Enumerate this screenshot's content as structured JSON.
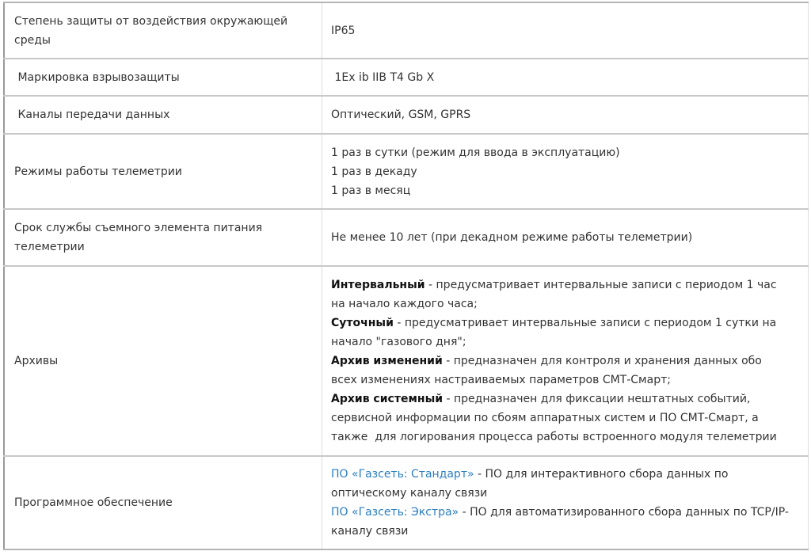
{
  "rows": [
    {
      "label": "Степень защиты от воздействия окружающей\nсреды",
      "value": "IP65"
    },
    {
      "label": " Маркировка взрывозащиты",
      "value": " 1Ex ib IIB T4 Gb X"
    },
    {
      "label": " Каналы передачи данных",
      "value": "Оптический, GSM, GPRS"
    },
    {
      "label": "Режимы работы телеметрии",
      "value_lines": [
        "1 раз в сутки (режим для ввода в эксплуатацию)",
        "1 раз в декаду",
        "1 раз в месяц"
      ]
    },
    {
      "label": "Срок службы съемного элемента питания\nтелеметрии",
      "value": "Не менее 10 лет (при декадном режиме работы телеметрии)"
    },
    {
      "label": "Архивы",
      "items": [
        {
          "bold": "Интервальный",
          "text": " - предусматривает интервальные записи с периодом 1 час",
          "cont": "на начало каждого часа;"
        },
        {
          "bold": "Суточный",
          "text": " - предусматривает интервальные записи с периодом 1 сутки на",
          "cont": "начало \"газового дня\";"
        },
        {
          "bold": "Архив изменений",
          "text": " - предназначен для контроля и хранения данных обо",
          "cont": "всех изменениях настраиваемых параметров СМТ-Смарт;"
        },
        {
          "bold": "Архив системный",
          "text": " - предназначен для фиксации нештатных событий,",
          "cont": "сервисной информации по сбоям аппаратных систем и ПО СМТ-Смарт, а",
          "cont2": "также  для логирования процесса работы встроенного модуля телеметрии"
        }
      ]
    },
    {
      "label": "Программное обеспечение",
      "links": [
        {
          "link": "ПО «Газсеть: Стандарт»",
          "text": " - ПО для интерактивного сбора данных по",
          "cont": "оптическому каналу связи"
        },
        {
          "link": "ПО «Газсеть: Экстра»",
          "text": " - ПО для автоматизированного сбора данных по TCP/IP-",
          "cont": "каналу связи"
        }
      ]
    }
  ],
  "colors": {
    "link": "#2a7ec2",
    "text": "#333333",
    "border": "#c8c8c8"
  }
}
